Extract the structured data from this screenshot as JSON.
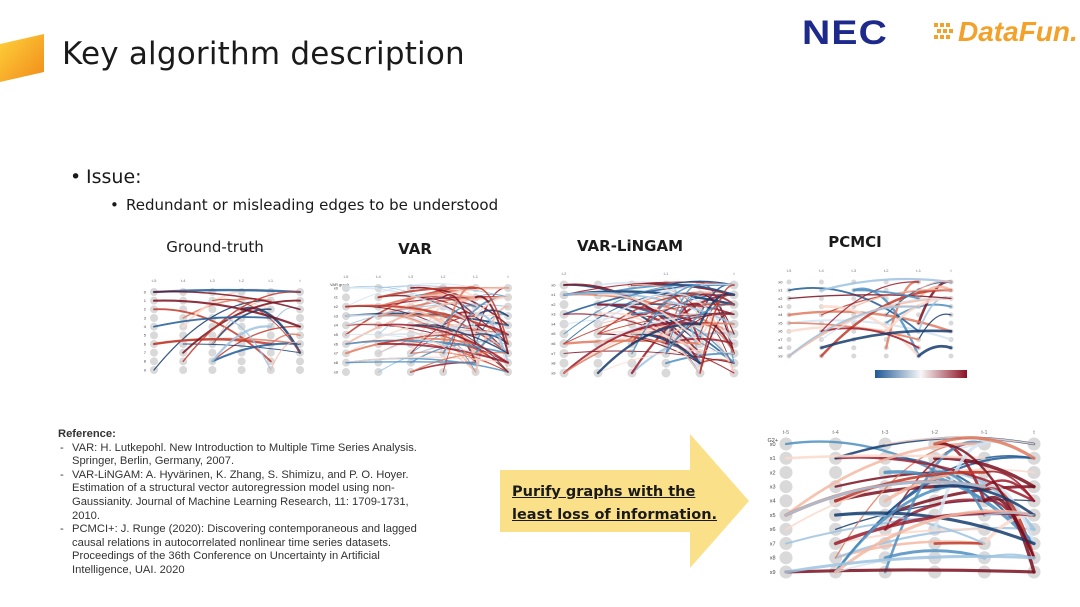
{
  "slide": {
    "title": "Key algorithm description",
    "accent_color": "#f5a623",
    "logos": {
      "nec": "NEC",
      "datafun": "DataFun."
    },
    "bullets": {
      "level1": "Issue:",
      "level2": "Redundant or misleading edges to be understood"
    },
    "panels": {
      "ground_truth": {
        "label": "Ground-truth",
        "col_labels": [
          "t-5",
          "t-4",
          "t-3",
          "t-2",
          "t-1",
          "t"
        ],
        "row_labels": [
          "0",
          "1",
          "2",
          "3",
          "4",
          "5",
          "6",
          "7",
          "8",
          "9"
        ]
      },
      "var": {
        "label": "VAR",
        "sub": "VAR graph",
        "col_labels": [
          "t-5",
          "t-4",
          "t-3",
          "t-2",
          "t-1",
          "t"
        ],
        "row_labels": [
          "x0",
          "x1",
          "x2",
          "x3",
          "x4",
          "x5",
          "x6",
          "x7",
          "x8",
          "x9"
        ]
      },
      "var_lingam": {
        "label": "VAR-LiNGAM",
        "col_labels": [
          "t-2",
          "t-1",
          "t"
        ],
        "row_labels": [
          "x0",
          "x1",
          "x2",
          "x3",
          "x4",
          "x5",
          "x6",
          "x7",
          "x8",
          "x9"
        ]
      },
      "pcmci": {
        "label": "PCMCI",
        "col_labels": [
          "t-5",
          "t-4",
          "t-3",
          "t-2",
          "t-1",
          "t"
        ],
        "row_labels": [
          "x0",
          "x1",
          "x2",
          "x3",
          "x4",
          "x5",
          "x6",
          "x7",
          "x8",
          "x9"
        ]
      },
      "purified": {
        "sub": "G2+",
        "col_labels": [
          "t-5",
          "t-4",
          "t-3",
          "t-2",
          "t-1",
          "t"
        ],
        "row_labels": [
          "x0",
          "x1",
          "x2",
          "x3",
          "x4",
          "x5",
          "x6",
          "x7",
          "x8",
          "x9"
        ]
      }
    },
    "reference": {
      "heading": "Reference:",
      "items": [
        "VAR: H. Lutkepohl. New Introduction to Multiple Time Series Analysis. Springer, Berlin, Germany, 2007.",
        "VAR-LiNGAM: A. Hyvärinen, K. Zhang, S. Shimizu, and P. O. Hoyer. Estimation of a structural vector autoregression model using non-Gaussianity. Journal of Machine Learning Research, 11: 1709-1731, 2010.",
        "PCMCI+: J. Runge (2020): Discovering contemporaneous and lagged causal relations in autocorrelated nonlinear time series datasets. Proceedings of the 36th Conference on Uncertainty in Artificial Intelligence, UAI. 2020"
      ]
    },
    "callout": {
      "text": "Purify graphs with the least loss of information.",
      "color": "#fbe08a"
    }
  }
}
